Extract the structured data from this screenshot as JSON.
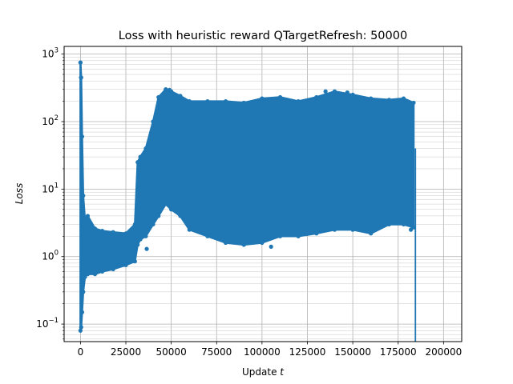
{
  "chart_data": {
    "type": "line",
    "title": "Loss with heuristic reward QTargetRefresh: 50000",
    "xlabel_prefix": "Update ",
    "xlabel_var": "t",
    "ylabel": "Loss",
    "xlim": [
      -9000,
      210000
    ],
    "ylim": [
      0.055,
      1300
    ],
    "yscale": "log",
    "grid": true,
    "grid_minor": true,
    "series_color": "#1f77b4",
    "marker": "circle",
    "x_ticks": [
      {
        "value": 0,
        "label": "0"
      },
      {
        "value": 25000,
        "label": "25000"
      },
      {
        "value": 50000,
        "label": "50000"
      },
      {
        "value": 75000,
        "label": "75000"
      },
      {
        "value": 100000,
        "label": "100000"
      },
      {
        "value": 125000,
        "label": "125000"
      },
      {
        "value": 150000,
        "label": "150000"
      },
      {
        "value": 175000,
        "label": "175000"
      },
      {
        "value": 200000,
        "label": "200000"
      }
    ],
    "y_ticks": [
      {
        "value": 0.1,
        "base": "10",
        "exp": "−1"
      },
      {
        "value": 1,
        "base": "10",
        "exp": "0"
      },
      {
        "value": 10,
        "base": "10",
        "exp": "1"
      },
      {
        "value": 100,
        "base": "10",
        "exp": "2"
      },
      {
        "value": 1000,
        "base": "10",
        "exp": "3"
      }
    ],
    "series": [
      {
        "envelope": [
          {
            "x": 0,
            "low": 0.08,
            "high": 750
          },
          {
            "x": 400,
            "low": 0.09,
            "high": 450
          },
          {
            "x": 900,
            "low": 0.15,
            "high": 60
          },
          {
            "x": 1500,
            "low": 0.3,
            "high": 8
          },
          {
            "x": 2500,
            "low": 0.5,
            "high": 3.5
          },
          {
            "x": 4000,
            "low": 0.55,
            "high": 4
          },
          {
            "x": 8000,
            "low": 0.55,
            "high": 2.6
          },
          {
            "x": 12000,
            "low": 0.6,
            "high": 2.4
          },
          {
            "x": 18000,
            "low": 0.65,
            "high": 2.3
          },
          {
            "x": 25000,
            "low": 0.75,
            "high": 2.2
          },
          {
            "x": 30000,
            "low": 0.85,
            "high": 3
          },
          {
            "x": 31500,
            "low": 1.5,
            "high": 25
          },
          {
            "x": 33000,
            "low": 1.8,
            "high": 30
          },
          {
            "x": 36000,
            "low": 2,
            "high": 40
          },
          {
            "x": 40000,
            "low": 3,
            "high": 100
          },
          {
            "x": 43000,
            "low": 4,
            "high": 230
          },
          {
            "x": 47000,
            "low": 6,
            "high": 300
          },
          {
            "x": 50000,
            "low": 5,
            "high": 280
          },
          {
            "x": 55000,
            "low": 4,
            "high": 240
          },
          {
            "x": 60000,
            "low": 2.5,
            "high": 200
          },
          {
            "x": 70000,
            "low": 2,
            "high": 200
          },
          {
            "x": 80000,
            "low": 1.6,
            "high": 200
          },
          {
            "x": 90000,
            "low": 1.5,
            "high": 190
          },
          {
            "x": 100000,
            "low": 1.6,
            "high": 220
          },
          {
            "x": 110000,
            "low": 2,
            "high": 230
          },
          {
            "x": 120000,
            "low": 2,
            "high": 200
          },
          {
            "x": 130000,
            "low": 2.2,
            "high": 230
          },
          {
            "x": 140000,
            "low": 2.5,
            "high": 280
          },
          {
            "x": 150000,
            "low": 2.5,
            "high": 250
          },
          {
            "x": 160000,
            "low": 2.2,
            "high": 220
          },
          {
            "x": 170000,
            "low": 3,
            "high": 210
          },
          {
            "x": 178000,
            "low": 3,
            "high": 220
          },
          {
            "x": 183500,
            "low": 2.7,
            "high": 190
          }
        ],
        "final_drop": {
          "x": 184500,
          "from": 40,
          "to": 0.055
        },
        "outliers": [
          {
            "x": 0,
            "y": 750
          },
          {
            "x": 300,
            "y": 450
          },
          {
            "x": 3000,
            "y": 3.8
          },
          {
            "x": 36500,
            "y": 1.3
          },
          {
            "x": 47000,
            "y": 300
          },
          {
            "x": 49000,
            "y": 295
          },
          {
            "x": 90000,
            "y": 1.5
          },
          {
            "x": 105000,
            "y": 1.4
          },
          {
            "x": 135000,
            "y": 280
          },
          {
            "x": 147000,
            "y": 270
          },
          {
            "x": 178000,
            "y": 190
          },
          {
            "x": 182000,
            "y": 2.5
          }
        ]
      }
    ]
  }
}
